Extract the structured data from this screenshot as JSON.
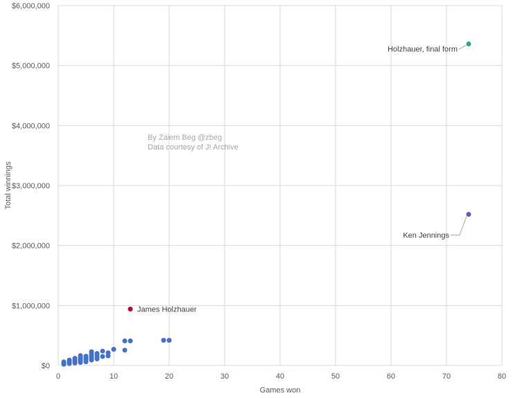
{
  "chart_data": {
    "type": "scatter",
    "xlabel": "Games won",
    "ylabel": "Total winnings",
    "xlim": [
      0,
      80
    ],
    "ylim": [
      0,
      6000000
    ],
    "x_ticks": [
      "0",
      "10",
      "20",
      "30",
      "40",
      "50",
      "60",
      "70",
      "80"
    ],
    "y_ticks": [
      "$0",
      "$1,000,000",
      "$2,000,000",
      "$3,000,000",
      "$4,000,000",
      "$5,000,000",
      "$6,000,000"
    ],
    "grid": true,
    "credit": [
      "By Zaiem Beg @zbeg",
      "Data courtesy of J! Archive"
    ],
    "colors": {
      "main": "#4472c4",
      "holzhauer_current": "#c00033",
      "holzhauer_projected": "#2ca87a",
      "jennings": "#7054b3",
      "grid": "#d9d9d9"
    },
    "series": [
      {
        "key": "main",
        "points": [
          [
            1,
            20000
          ],
          [
            1,
            35000
          ],
          [
            1,
            50000
          ],
          [
            1,
            60000
          ],
          [
            2,
            30000
          ],
          [
            2,
            50000
          ],
          [
            2,
            70000
          ],
          [
            2,
            90000
          ],
          [
            3,
            40000
          ],
          [
            3,
            60000
          ],
          [
            3,
            80000
          ],
          [
            3,
            100000
          ],
          [
            3,
            120000
          ],
          [
            4,
            50000
          ],
          [
            4,
            80000
          ],
          [
            4,
            100000
          ],
          [
            4,
            120000
          ],
          [
            4,
            140000
          ],
          [
            4,
            165000
          ],
          [
            5,
            60000
          ],
          [
            5,
            90000
          ],
          [
            5,
            110000
          ],
          [
            5,
            130000
          ],
          [
            5,
            155000
          ],
          [
            6,
            90000
          ],
          [
            6,
            120000
          ],
          [
            6,
            150000
          ],
          [
            6,
            175000
          ],
          [
            6,
            200000
          ],
          [
            6,
            230000
          ],
          [
            7,
            110000
          ],
          [
            7,
            140000
          ],
          [
            7,
            170000
          ],
          [
            7,
            200000
          ],
          [
            8,
            150000
          ],
          [
            8,
            240000
          ],
          [
            9,
            160000
          ],
          [
            9,
            210000
          ],
          [
            10,
            270000
          ],
          [
            12,
            255000
          ],
          [
            12,
            410000
          ],
          [
            13,
            410000
          ],
          [
            19,
            420000
          ],
          [
            20,
            420000
          ]
        ]
      },
      {
        "key": "holzhauer_current",
        "points": [
          [
            13,
            940000
          ]
        ]
      },
      {
        "key": "holzhauer_projected",
        "points": [
          [
            74,
            5360000
          ]
        ]
      },
      {
        "key": "jennings",
        "points": [
          [
            74,
            2520000
          ]
        ]
      }
    ],
    "annotations": [
      {
        "text": "James Holzhauer",
        "series": "holzhauer_current"
      },
      {
        "text": "Holzhauer, final form",
        "series": "holzhauer_projected"
      },
      {
        "text": "Ken Jennings",
        "series": "jennings"
      }
    ]
  }
}
